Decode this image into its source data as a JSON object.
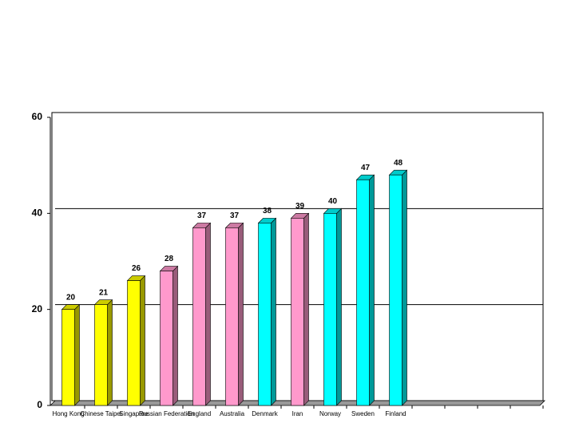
{
  "chart_data": {
    "type": "bar3d",
    "categories": [
      "Hong Kong",
      "Chinese Taipei",
      "Singapore",
      "Russian Federation",
      "England",
      "Australia",
      "Denmark",
      "Iran",
      "Norway",
      "Sweden",
      "Finland",
      null,
      null,
      null,
      null
    ],
    "values": [
      20,
      21,
      26,
      28,
      37,
      37,
      38,
      39,
      40,
      47,
      48,
      null,
      null,
      null,
      null
    ],
    "colors": [
      "#ffff00",
      "#ffff00",
      "#ffff00",
      "#ff99cc",
      "#ff99cc",
      "#ff99cc",
      "#00ffff",
      "#ff99cc",
      "#00ffff",
      "#00ffff",
      "#00ffff"
    ],
    "ylim": [
      0,
      60
    ],
    "yticks": [
      0,
      20,
      40,
      60
    ],
    "grid": true
  }
}
